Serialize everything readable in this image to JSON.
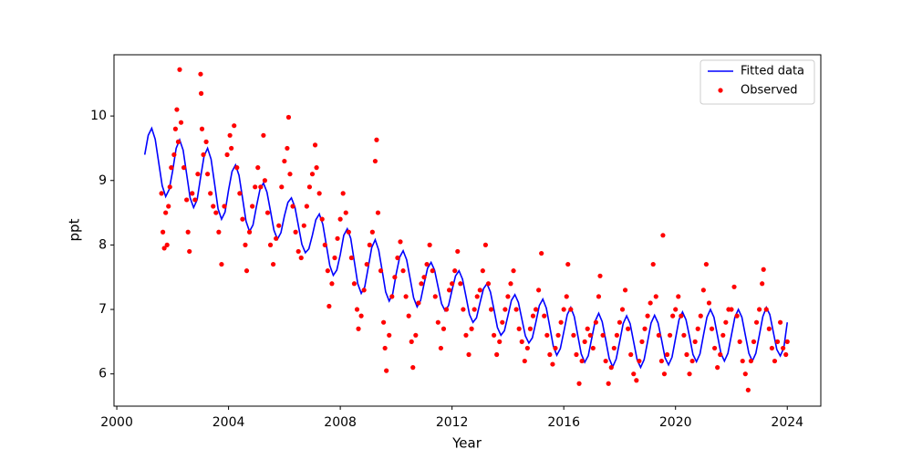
{
  "chart_data": {
    "type": "line",
    "xlabel": "Year",
    "ylabel": "ppt",
    "xlim": [
      1999.9,
      2025.2
    ],
    "ylim": [
      5.5,
      10.95
    ],
    "xticks": [
      2000,
      2004,
      2008,
      2012,
      2016,
      2020,
      2024
    ],
    "yticks": [
      6,
      7,
      8,
      9,
      10
    ],
    "grid": false,
    "legend": "upper right",
    "series": [
      {
        "name": "Fitted data",
        "type": "line",
        "color": "#0000ff",
        "x": [
          2001,
          2001.125,
          2001.25,
          2001.375,
          2001.5,
          2001.625,
          2001.75,
          2001.875,
          2002,
          2002.125,
          2002.25,
          2002.375,
          2002.5,
          2002.625,
          2002.75,
          2002.875,
          2003,
          2003.125,
          2003.25,
          2003.375,
          2003.5,
          2003.625,
          2003.75,
          2003.875,
          2004,
          2004.125,
          2004.25,
          2004.375,
          2004.5,
          2004.625,
          2004.75,
          2004.875,
          2005,
          2005.125,
          2005.25,
          2005.375,
          2005.5,
          2005.625,
          2005.75,
          2005.875,
          2006,
          2006.125,
          2006.25,
          2006.375,
          2006.5,
          2006.625,
          2006.75,
          2006.875,
          2007,
          2007.125,
          2007.25,
          2007.375,
          2007.5,
          2007.625,
          2007.75,
          2007.875,
          2008,
          2008.125,
          2008.25,
          2008.375,
          2008.5,
          2008.625,
          2008.75,
          2008.875,
          2009,
          2009.125,
          2009.25,
          2009.375,
          2009.5,
          2009.625,
          2009.75,
          2009.875,
          2010,
          2010.125,
          2010.25,
          2010.375,
          2010.5,
          2010.625,
          2010.75,
          2010.875,
          2011,
          2011.125,
          2011.25,
          2011.375,
          2011.5,
          2011.625,
          2011.75,
          2011.875,
          2012,
          2012.125,
          2012.25,
          2012.375,
          2012.5,
          2012.625,
          2012.75,
          2012.875,
          2013,
          2013.125,
          2013.25,
          2013.375,
          2013.5,
          2013.625,
          2013.75,
          2013.875,
          2014,
          2014.125,
          2014.25,
          2014.375,
          2014.5,
          2014.625,
          2014.75,
          2014.875,
          2015,
          2015.125,
          2015.25,
          2015.375,
          2015.5,
          2015.625,
          2015.75,
          2015.875,
          2016,
          2016.125,
          2016.25,
          2016.375,
          2016.5,
          2016.625,
          2016.75,
          2016.875,
          2017,
          2017.125,
          2017.25,
          2017.375,
          2017.5,
          2017.625,
          2017.75,
          2017.875,
          2018,
          2018.125,
          2018.25,
          2018.375,
          2018.5,
          2018.625,
          2018.75,
          2018.875,
          2019,
          2019.125,
          2019.25,
          2019.375,
          2019.5,
          2019.625,
          2019.75,
          2019.875,
          2020,
          2020.125,
          2020.25,
          2020.375,
          2020.5,
          2020.625,
          2020.75,
          2020.875,
          2021,
          2021.125,
          2021.25,
          2021.375,
          2021.5,
          2021.625,
          2021.75,
          2021.875,
          2022,
          2022.125,
          2022.25,
          2022.375,
          2022.5,
          2022.625,
          2022.75,
          2022.875,
          2023,
          2023.125,
          2023.25,
          2023.375,
          2023.5,
          2023.625,
          2023.75,
          2023.875,
          2024
        ],
        "values": [
          9.4,
          9.7,
          9.81,
          9.64,
          9.28,
          8.92,
          8.75,
          8.86,
          9.15,
          9.5,
          9.63,
          9.47,
          9.1,
          8.73,
          8.58,
          8.7,
          9.05,
          9.38,
          9.5,
          9.33,
          8.95,
          8.56,
          8.4,
          8.51,
          8.85,
          9.14,
          9.24,
          9.08,
          8.73,
          8.37,
          8.21,
          8.31,
          8.6,
          8.86,
          8.96,
          8.82,
          8.53,
          8.23,
          8.09,
          8.19,
          8.45,
          8.66,
          8.73,
          8.59,
          8.3,
          8.01,
          7.88,
          7.94,
          8.15,
          8.39,
          8.48,
          8.32,
          8.0,
          7.68,
          7.53,
          7.61,
          7.85,
          8.15,
          8.25,
          8.1,
          7.75,
          7.4,
          7.25,
          7.35,
          7.65,
          7.96,
          8.08,
          7.92,
          7.6,
          7.27,
          7.13,
          7.24,
          7.55,
          7.81,
          7.91,
          7.77,
          7.48,
          7.18,
          7.04,
          7.14,
          7.4,
          7.64,
          7.73,
          7.61,
          7.35,
          7.09,
          6.98,
          7.06,
          7.3,
          7.52,
          7.6,
          7.47,
          7.2,
          6.92,
          6.8,
          6.87,
          7.1,
          7.32,
          7.4,
          7.27,
          7.0,
          6.72,
          6.6,
          6.67,
          6.9,
          7.14,
          7.23,
          7.11,
          6.85,
          6.59,
          6.48,
          6.56,
          6.8,
          7.06,
          7.16,
          7.02,
          6.73,
          6.43,
          6.29,
          6.39,
          6.65,
          6.92,
          7.03,
          6.89,
          6.6,
          6.31,
          6.18,
          6.28,
          6.55,
          6.82,
          6.94,
          6.81,
          6.53,
          6.24,
          6.11,
          6.23,
          6.5,
          6.78,
          6.9,
          6.78,
          6.5,
          6.22,
          6.1,
          6.22,
          6.5,
          6.79,
          6.91,
          6.79,
          6.53,
          6.25,
          6.14,
          6.26,
          6.55,
          6.84,
          6.96,
          6.84,
          6.58,
          6.3,
          6.19,
          6.31,
          6.6,
          6.88,
          7.0,
          6.88,
          6.6,
          6.32,
          6.2,
          6.32,
          6.6,
          6.88,
          7.0,
          6.88,
          6.6,
          6.32,
          6.2,
          6.32,
          6.6,
          6.89,
          7.03,
          6.92,
          6.65,
          6.38,
          6.28,
          6.4,
          6.8
        ]
      },
      {
        "name": "Observed",
        "type": "scatter",
        "color": "#ff0000",
        "x": [
          2001.6,
          2001.65,
          2001.7,
          2001.75,
          2001.8,
          2001.85,
          2001.9,
          2001.95,
          2002.05,
          2002.1,
          2002.15,
          2002.2,
          2002.25,
          2002.3,
          2002.4,
          2002.5,
          2002.55,
          2002.6,
          2002.7,
          2002.8,
          2002.9,
          2003.0,
          2003.02,
          2003.05,
          2003.1,
          2003.2,
          2003.25,
          2003.35,
          2003.45,
          2003.55,
          2003.65,
          2003.75,
          2003.85,
          2003.95,
          2004.05,
          2004.1,
          2004.2,
          2004.3,
          2004.4,
          2004.5,
          2004.6,
          2004.65,
          2004.75,
          2004.85,
          2004.95,
          2005.05,
          2005.15,
          2005.25,
          2005.3,
          2005.4,
          2005.5,
          2005.6,
          2005.7,
          2005.8,
          2005.9,
          2006.0,
          2006.1,
          2006.15,
          2006.2,
          2006.3,
          2006.4,
          2006.5,
          2006.6,
          2006.7,
          2006.8,
          2006.9,
          2007.0,
          2007.1,
          2007.15,
          2007.25,
          2007.35,
          2007.45,
          2007.55,
          2007.6,
          2007.7,
          2007.8,
          2007.9,
          2008.0,
          2008.1,
          2008.2,
          2008.3,
          2008.4,
          2008.5,
          2008.6,
          2008.65,
          2008.75,
          2008.85,
          2008.95,
          2009.05,
          2009.15,
          2009.25,
          2009.3,
          2009.35,
          2009.45,
          2009.55,
          2009.6,
          2009.65,
          2009.75,
          2009.85,
          2009.95,
          2010.05,
          2010.15,
          2010.25,
          2010.35,
          2010.45,
          2010.55,
          2010.6,
          2010.7,
          2010.8,
          2010.9,
          2011.0,
          2011.1,
          2011.2,
          2011.3,
          2011.4,
          2011.5,
          2011.6,
          2011.7,
          2011.8,
          2011.9,
          2012.0,
          2012.1,
          2012.2,
          2012.3,
          2012.4,
          2012.5,
          2012.6,
          2012.7,
          2012.8,
          2012.9,
          2013.0,
          2013.1,
          2013.2,
          2013.3,
          2013.4,
          2013.5,
          2013.6,
          2013.7,
          2013.8,
          2013.9,
          2014.0,
          2014.1,
          2014.2,
          2014.3,
          2014.4,
          2014.5,
          2014.6,
          2014.7,
          2014.8,
          2014.9,
          2015.0,
          2015.1,
          2015.2,
          2015.3,
          2015.4,
          2015.5,
          2015.6,
          2015.7,
          2015.8,
          2015.9,
          2016.0,
          2016.1,
          2016.15,
          2016.25,
          2016.35,
          2016.45,
          2016.55,
          2016.65,
          2016.75,
          2016.85,
          2016.95,
          2017.05,
          2017.15,
          2017.25,
          2017.3,
          2017.4,
          2017.5,
          2017.6,
          2017.7,
          2017.8,
          2017.9,
          2018.0,
          2018.1,
          2018.2,
          2018.3,
          2018.4,
          2018.5,
          2018.6,
          2018.7,
          2018.8,
          2018.9,
          2019.0,
          2019.1,
          2019.2,
          2019.3,
          2019.4,
          2019.5,
          2019.55,
          2019.6,
          2019.7,
          2019.8,
          2019.9,
          2020.0,
          2020.1,
          2020.2,
          2020.3,
          2020.4,
          2020.5,
          2020.6,
          2020.7,
          2020.8,
          2020.9,
          2021.0,
          2021.1,
          2021.2,
          2021.3,
          2021.4,
          2021.5,
          2021.6,
          2021.7,
          2021.8,
          2021.9,
          2022.0,
          2022.1,
          2022.2,
          2022.3,
          2022.4,
          2022.5,
          2022.6,
          2022.7,
          2022.8,
          2022.9,
          2023.0,
          2023.1,
          2023.15,
          2023.25,
          2023.35,
          2023.45,
          2023.55,
          2023.65,
          2023.75,
          2023.85,
          2023.95,
          2024.0
        ],
        "values": [
          8.8,
          8.2,
          7.95,
          8.5,
          8.0,
          8.6,
          8.9,
          9.2,
          9.4,
          9.8,
          10.1,
          9.6,
          10.72,
          9.9,
          9.2,
          8.7,
          8.2,
          7.9,
          8.8,
          8.7,
          9.1,
          10.65,
          10.35,
          9.8,
          9.4,
          9.6,
          9.1,
          8.8,
          8.6,
          8.5,
          8.2,
          7.7,
          8.6,
          9.4,
          9.7,
          9.5,
          9.85,
          9.2,
          8.8,
          8.4,
          8.0,
          7.6,
          8.2,
          8.6,
          8.9,
          9.2,
          8.9,
          9.7,
          9.0,
          8.5,
          8.0,
          7.7,
          8.1,
          8.3,
          8.9,
          9.3,
          9.5,
          9.98,
          9.1,
          8.6,
          8.2,
          7.9,
          7.8,
          8.3,
          8.6,
          8.9,
          9.1,
          9.55,
          9.2,
          8.8,
          8.4,
          8.0,
          7.6,
          7.05,
          7.4,
          7.8,
          8.1,
          8.4,
          8.8,
          8.5,
          8.2,
          7.8,
          7.4,
          7.0,
          6.7,
          6.9,
          7.3,
          7.7,
          8.0,
          8.2,
          9.3,
          9.63,
          8.5,
          7.6,
          6.8,
          6.4,
          6.05,
          6.6,
          7.2,
          7.5,
          7.8,
          8.05,
          7.6,
          7.2,
          6.9,
          6.5,
          6.1,
          6.6,
          7.1,
          7.4,
          7.5,
          7.7,
          8.0,
          7.6,
          7.2,
          6.8,
          6.4,
          6.7,
          7.0,
          7.3,
          7.4,
          7.6,
          7.9,
          7.4,
          7.0,
          6.6,
          6.3,
          6.7,
          7.0,
          7.2,
          7.3,
          7.6,
          8.0,
          7.4,
          7.0,
          6.6,
          6.3,
          6.5,
          6.8,
          7.0,
          7.2,
          7.4,
          7.6,
          7.0,
          6.7,
          6.5,
          6.2,
          6.4,
          6.7,
          6.9,
          7.0,
          7.3,
          7.87,
          6.9,
          6.6,
          6.3,
          6.15,
          6.4,
          6.6,
          6.8,
          7.0,
          7.2,
          7.7,
          7.0,
          6.6,
          6.3,
          5.85,
          6.2,
          6.5,
          6.7,
          6.6,
          6.4,
          6.8,
          7.2,
          7.52,
          6.6,
          6.2,
          5.85,
          6.1,
          6.4,
          6.6,
          6.8,
          7.0,
          7.3,
          6.7,
          6.3,
          6.0,
          5.9,
          6.2,
          6.5,
          6.7,
          6.9,
          7.1,
          7.7,
          7.2,
          6.6,
          6.2,
          8.15,
          6.0,
          6.3,
          6.6,
          6.9,
          7.0,
          7.2,
          6.9,
          6.6,
          6.3,
          6.0,
          6.2,
          6.5,
          6.7,
          6.9,
          7.3,
          7.7,
          7.1,
          6.7,
          6.4,
          6.1,
          6.3,
          6.6,
          6.8,
          7.0,
          7.0,
          7.35,
          6.9,
          6.5,
          6.2,
          6.0,
          5.75,
          6.2,
          6.5,
          6.8,
          7.0,
          7.4,
          7.62,
          7.0,
          6.7,
          6.4,
          6.2,
          6.5,
          6.8,
          6.4,
          6.3,
          6.5
        ]
      }
    ]
  }
}
